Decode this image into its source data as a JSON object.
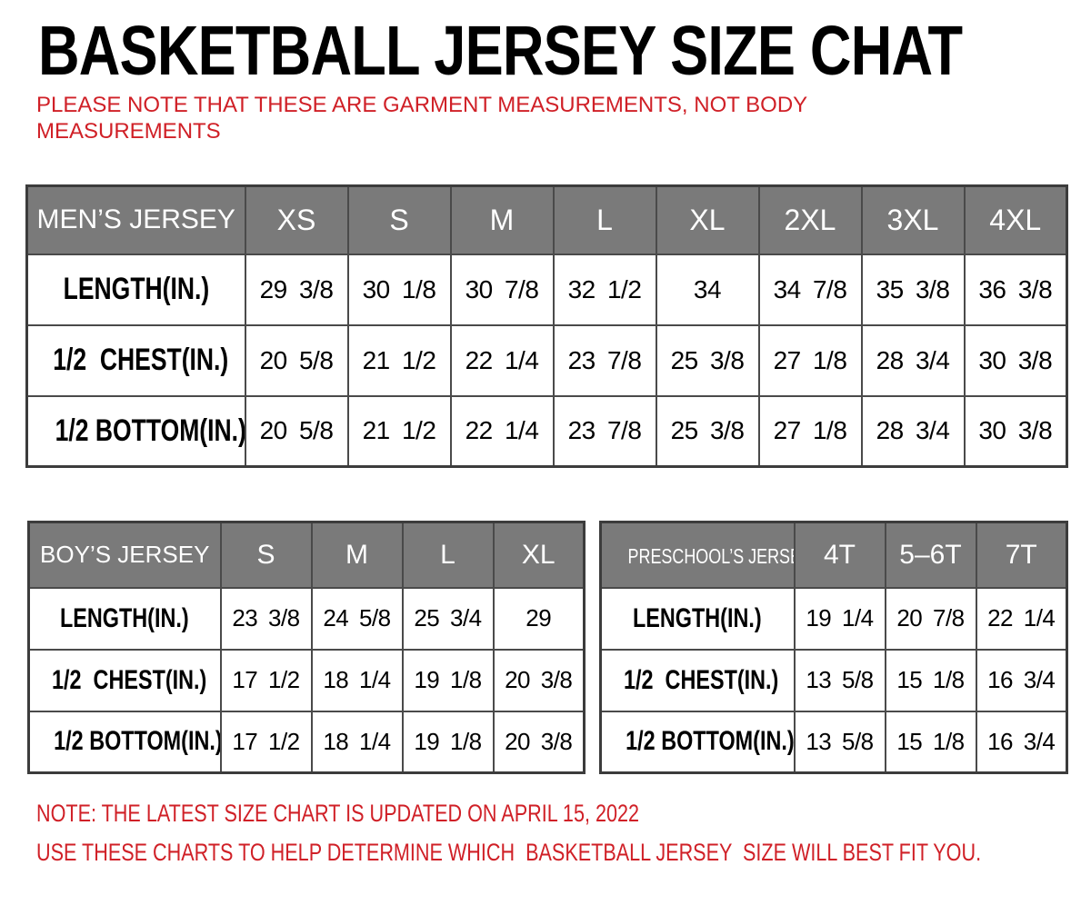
{
  "title": "BASKETBALL JERSEY SIZE CHAT",
  "notes": {
    "top": "PLEASE NOTE THAT THESE ARE GARMENT MEASUREMENTS, NOT BODY MEASUREMENTS",
    "bottom1": "NOTE: THE LATEST SIZE CHART IS UPDATED ON APRIL 15, 2022",
    "bottom2": "USE THESE CHARTS TO HELP DETERMINE WHICH  BASKETBALL JERSEY  SIZE WILL BEST FIT YOU."
  },
  "colors": {
    "header_bg": "#7a7a7a",
    "header_text": "#ffffff",
    "border": "#4a4a4a",
    "outer_border": "#3c3c3c",
    "note_red": "#d02027",
    "title_color": "#000000"
  },
  "tables": {
    "mens": {
      "header": [
        "MEN’S JERSEY",
        "XS",
        "S",
        "M",
        "L",
        "XL",
        "2XL",
        "3XL",
        "4XL"
      ],
      "rows": [
        {
          "label": "LENGTH(IN.)",
          "values": [
            "29 3/8",
            "30 1/8",
            "30 7/8",
            "32 1/2",
            "34",
            "34 7/8",
            "35 3/8",
            "36 3/8"
          ]
        },
        {
          "label": "1/2  CHEST(IN.)",
          "values": [
            "20 5/8",
            "21 1/2",
            "22 1/4",
            "23 7/8",
            "25 3/8",
            "27 1/8",
            "28 3/4",
            "30 3/8"
          ]
        },
        {
          "label": "1/2 BOTTOM(IN.)",
          "values": [
            "20 5/8",
            "21 1/2",
            "22 1/4",
            "23 7/8",
            "25 3/8",
            "27 1/8",
            "28 3/4",
            "30 3/8"
          ]
        }
      ]
    },
    "boys": {
      "header": [
        "BOY’S JERSEY",
        "S",
        "M",
        "L",
        "XL"
      ],
      "rows": [
        {
          "label": "LENGTH(IN.)",
          "values": [
            "23 3/8",
            "24 5/8",
            "25 3/4",
            "29"
          ]
        },
        {
          "label": "1/2  CHEST(IN.)",
          "values": [
            "17 1/2",
            "18 1/4",
            "19 1/8",
            "20 3/8"
          ]
        },
        {
          "label": "1/2 BOTTOM(IN.)",
          "values": [
            "17 1/2",
            "18 1/4",
            "19 1/8",
            "20 3/8"
          ]
        }
      ]
    },
    "preschool": {
      "header": [
        "PRESCHOOL’S JERSEY",
        "4T",
        "5–6T",
        "7T"
      ],
      "rows": [
        {
          "label": "LENGTH(IN.)",
          "values": [
            "19 1/4",
            "20 7/8",
            "22 1/4"
          ]
        },
        {
          "label": "1/2  CHEST(IN.)",
          "values": [
            "13 5/8",
            "15 1/8",
            "16 3/4"
          ]
        },
        {
          "label": "1/2 BOTTOM(IN.)",
          "values": [
            "13 5/8",
            "15 1/8",
            "16 3/4"
          ]
        }
      ]
    }
  }
}
